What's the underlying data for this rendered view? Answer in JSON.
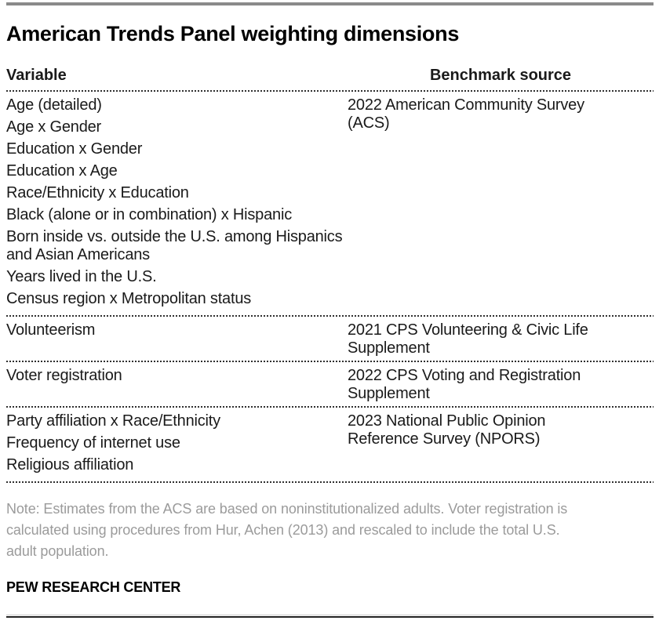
{
  "title": "American Trends Panel weighting dimensions",
  "chart_data": {
    "type": "table",
    "title": "American Trends Panel weighting dimensions",
    "columns": [
      "Variable",
      "Benchmark source"
    ],
    "rows": [
      {
        "variables": [
          "Age (detailed)",
          "Age x Gender",
          "Education x Gender",
          "Education x Age",
          "Race/Ethnicity x Education",
          "Black (alone or in combination) x Hispanic",
          "Born inside vs. outside the U.S. among Hispanics and Asian Americans",
          "Years lived in the U.S.",
          "Census region x Metropolitan status"
        ],
        "benchmark": "2022 American Community Survey (ACS)",
        "benchmark_lines": [
          "2022 American Community Survey",
          "(ACS)"
        ]
      },
      {
        "variables": [
          "Volunteerism"
        ],
        "benchmark": "2021 CPS Volunteering & Civic Life Supplement",
        "benchmark_lines": [
          "2021 CPS Volunteering & Civic Life",
          "Supplement"
        ]
      },
      {
        "variables": [
          "Voter registration"
        ],
        "benchmark": "2022 CPS Voting and Registration Supplement",
        "benchmark_lines": [
          "2022 CPS Voting and Registration",
          "Supplement"
        ]
      },
      {
        "variables": [
          "Party affiliation x Race/Ethnicity",
          "Frequency of internet use",
          "Religious affiliation"
        ],
        "benchmark": "2023 National Public Opinion Reference Survey (NPORS)",
        "benchmark_lines": [
          "2023 National Public Opinion",
          "Reference Survey (NPORS)"
        ]
      }
    ]
  },
  "note": {
    "text": "Note: Estimates from the ACS are based on noninstitutionalized adults. Voter registration is calculated using procedures from Hur, Achen (2013) and rescaled to include the total U.S. adult population.",
    "lines": [
      "Note: Estimates from the ACS are based on noninstitutionalized adults. Voter registration is",
      "calculated using procedures from Hur, Achen (2013) and rescaled to include the total U.S.",
      "adult population."
    ]
  },
  "footer": "PEW RESEARCH CENTER",
  "colors": {
    "text": "#1a1a1a",
    "note_text": "#9b9b9b",
    "top_bar": "#8a8a8a",
    "dotted_line": "#2f2f2f",
    "bottom_line_dark": "#222222",
    "bottom_line_light": "#cccccc"
  }
}
